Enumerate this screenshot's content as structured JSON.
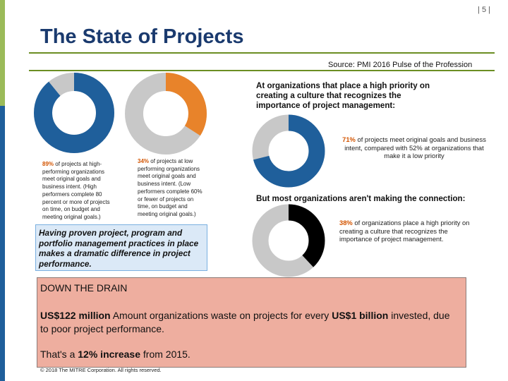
{
  "page_number": "| 5 |",
  "title": "The State of Projects",
  "source": "Source: PMI 2016 Pulse of the Profession",
  "colors": {
    "navy": "#1f5f9b",
    "orange": "#e8832a",
    "gray": "#c8c8c8",
    "black": "#000000",
    "green_bar": "#9bbb59"
  },
  "left_donut_1": {
    "highlight_percent": 89,
    "highlight_color": "#1f5f9b"
  },
  "left_donut_2": {
    "highlight_percent": 34,
    "highlight_color": "#e8832a"
  },
  "note_high": {
    "pct": "89%",
    "text": " of projects at high-performing organizations meet original goals and business intent. (High performers complete 80 percent or more of projects on time, on budget and meeting original goals.)"
  },
  "note_low": {
    "pct": "34%",
    "text": " of projects at low performing organizations meet original goals and business intent. (Low performers complete 60% or fewer of projects on time, on budget and meeting original goals.)"
  },
  "callout": "Having proven project, program and portfolio management practices in place makes a dramatic difference in project performance.",
  "right_heading_1": "At organizations that place a high priority on creating a culture that recognizes the importance of project management:",
  "right_donut_1": {
    "highlight_percent": 71,
    "highlight_color": "#1f5f9b"
  },
  "note_71": {
    "pct": "71%",
    "text": " of projects meet original goals and business intent, compared with 52% at organizations that make it a low priority"
  },
  "right_heading_2": "But most organizations aren't making the connection:",
  "right_donut_2": {
    "highlight_percent": 38,
    "highlight_color": "#000000"
  },
  "note_38": {
    "pct": "38%",
    "text": " of organizations place a high priority on creating a culture that recognizes the importance of project management."
  },
  "drain": {
    "title": "DOWN THE DRAIN",
    "amount": "US$122 million",
    "text_mid": " Amount organizations waste on projects for every ",
    "per": "US$1 billion",
    "text_end": " invested, due to poor project performance.",
    "increase_prefix": "That's a ",
    "increase": "12% increase",
    "increase_suffix": " from 2015."
  },
  "footer": "© 2018 The MITRE Corporation. All rights reserved."
}
